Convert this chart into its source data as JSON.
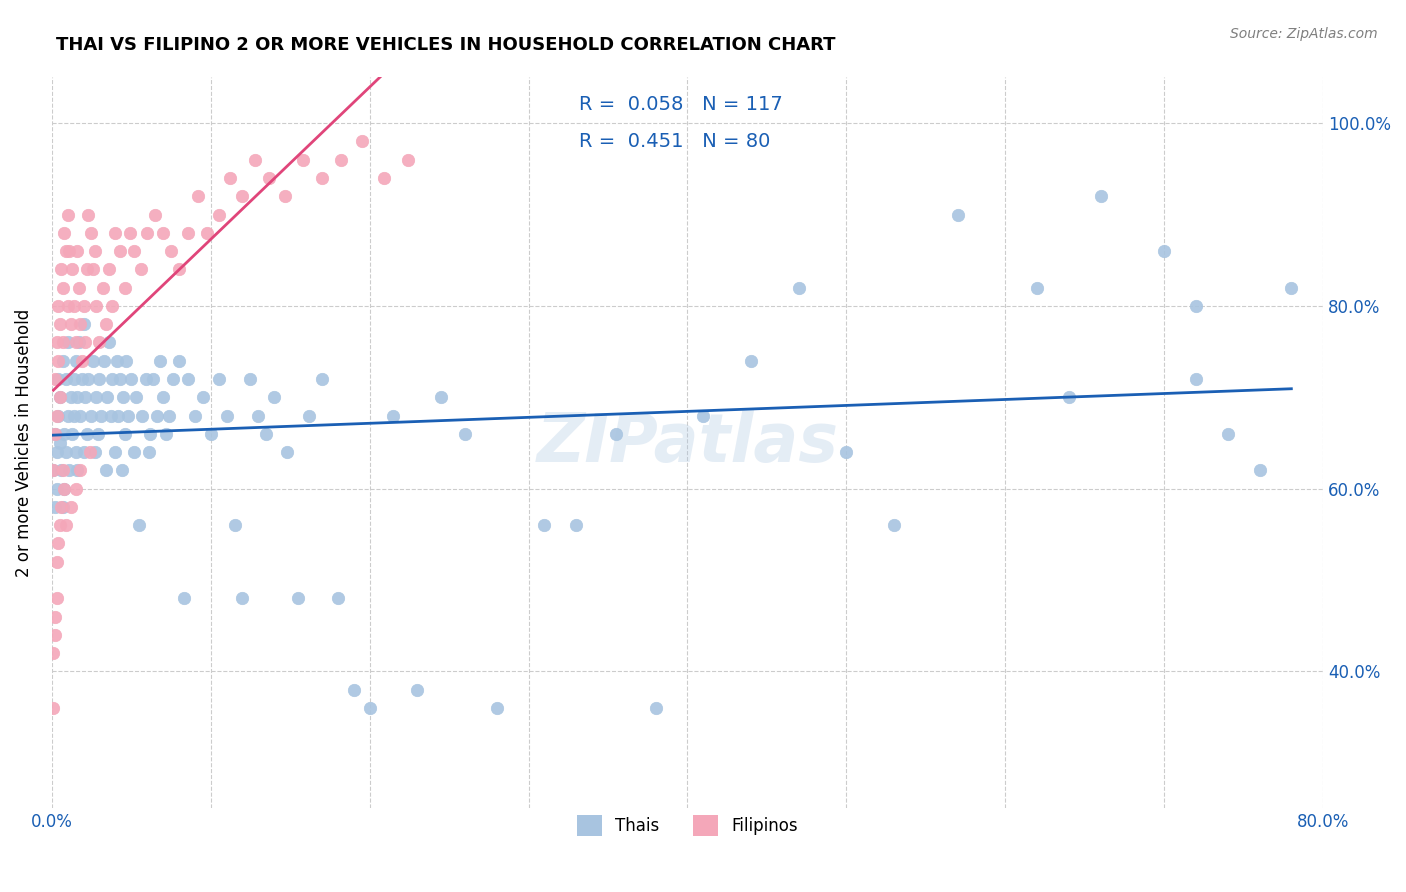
{
  "title": "THAI VS FILIPINO 2 OR MORE VEHICLES IN HOUSEHOLD CORRELATION CHART",
  "source": "Source: ZipAtlas.com",
  "xlabel": "",
  "ylabel": "2 or more Vehicles in Household",
  "watermark": "ZIPatlas",
  "xlim": [
    0.0,
    0.8
  ],
  "ylim": [
    0.25,
    1.05
  ],
  "xticks": [
    0.0,
    0.1,
    0.2,
    0.3,
    0.4,
    0.5,
    0.6,
    0.7,
    0.8
  ],
  "xticklabels": [
    "0.0%",
    "",
    "",
    "",
    "",
    "",
    "",
    "",
    "80.0%"
  ],
  "yticks": [
    0.4,
    0.6,
    0.8,
    1.0
  ],
  "yticklabels": [
    "40.0%",
    "60.0%",
    "80.0%",
    "100.0%"
  ],
  "thai_color": "#a8c4e0",
  "filipino_color": "#f4a7b9",
  "thai_line_color": "#1a5fb4",
  "filipino_line_color": "#e0457a",
  "legend_R_color": "#1a5fb4",
  "legend_N_color": "#1a5fb4",
  "thai_R": 0.058,
  "thai_N": 117,
  "filipino_R": 0.451,
  "filipino_N": 80,
  "thai_x": [
    0.001,
    0.002,
    0.002,
    0.003,
    0.003,
    0.004,
    0.004,
    0.005,
    0.005,
    0.006,
    0.007,
    0.007,
    0.008,
    0.008,
    0.009,
    0.009,
    0.01,
    0.01,
    0.011,
    0.012,
    0.013,
    0.014,
    0.014,
    0.015,
    0.015,
    0.016,
    0.016,
    0.017,
    0.018,
    0.019,
    0.02,
    0.02,
    0.021,
    0.022,
    0.023,
    0.025,
    0.026,
    0.027,
    0.028,
    0.029,
    0.03,
    0.031,
    0.033,
    0.034,
    0.035,
    0.036,
    0.037,
    0.038,
    0.04,
    0.041,
    0.042,
    0.043,
    0.044,
    0.045,
    0.046,
    0.047,
    0.048,
    0.05,
    0.052,
    0.053,
    0.055,
    0.057,
    0.059,
    0.061,
    0.062,
    0.064,
    0.066,
    0.068,
    0.07,
    0.072,
    0.074,
    0.076,
    0.08,
    0.083,
    0.086,
    0.09,
    0.095,
    0.1,
    0.105,
    0.11,
    0.115,
    0.12,
    0.125,
    0.13,
    0.135,
    0.14,
    0.148,
    0.155,
    0.162,
    0.17,
    0.18,
    0.19,
    0.2,
    0.215,
    0.23,
    0.245,
    0.26,
    0.28,
    0.31,
    0.33,
    0.355,
    0.38,
    0.41,
    0.44,
    0.47,
    0.5,
    0.53,
    0.57,
    0.62,
    0.66,
    0.7,
    0.72,
    0.74,
    0.76,
    0.78,
    0.72,
    0.64
  ],
  "thai_y": [
    0.62,
    0.58,
    0.66,
    0.6,
    0.64,
    0.68,
    0.72,
    0.65,
    0.7,
    0.62,
    0.58,
    0.74,
    0.6,
    0.66,
    0.64,
    0.72,
    0.68,
    0.76,
    0.62,
    0.7,
    0.66,
    0.72,
    0.68,
    0.64,
    0.74,
    0.7,
    0.62,
    0.76,
    0.68,
    0.72,
    0.64,
    0.78,
    0.7,
    0.66,
    0.72,
    0.68,
    0.74,
    0.64,
    0.7,
    0.66,
    0.72,
    0.68,
    0.74,
    0.62,
    0.7,
    0.76,
    0.68,
    0.72,
    0.64,
    0.74,
    0.68,
    0.72,
    0.62,
    0.7,
    0.66,
    0.74,
    0.68,
    0.72,
    0.64,
    0.7,
    0.56,
    0.68,
    0.72,
    0.64,
    0.66,
    0.72,
    0.68,
    0.74,
    0.7,
    0.66,
    0.68,
    0.72,
    0.74,
    0.48,
    0.72,
    0.68,
    0.7,
    0.66,
    0.72,
    0.68,
    0.56,
    0.48,
    0.72,
    0.68,
    0.66,
    0.7,
    0.64,
    0.48,
    0.68,
    0.72,
    0.48,
    0.38,
    0.36,
    0.68,
    0.38,
    0.7,
    0.66,
    0.36,
    0.56,
    0.56,
    0.66,
    0.36,
    0.68,
    0.74,
    0.82,
    0.64,
    0.56,
    0.9,
    0.82,
    0.92,
    0.86,
    0.72,
    0.66,
    0.62,
    0.82,
    0.8,
    0.7
  ],
  "filipino_x": [
    0.001,
    0.002,
    0.002,
    0.003,
    0.003,
    0.004,
    0.004,
    0.005,
    0.005,
    0.006,
    0.007,
    0.007,
    0.008,
    0.009,
    0.01,
    0.01,
    0.011,
    0.012,
    0.013,
    0.014,
    0.015,
    0.016,
    0.017,
    0.018,
    0.019,
    0.02,
    0.021,
    0.022,
    0.023,
    0.025,
    0.026,
    0.027,
    0.028,
    0.03,
    0.032,
    0.034,
    0.036,
    0.038,
    0.04,
    0.043,
    0.046,
    0.049,
    0.052,
    0.056,
    0.06,
    0.065,
    0.07,
    0.075,
    0.08,
    0.086,
    0.092,
    0.098,
    0.105,
    0.112,
    0.12,
    0.128,
    0.137,
    0.147,
    0.158,
    0.17,
    0.182,
    0.195,
    0.209,
    0.224,
    0.024,
    0.018,
    0.015,
    0.012,
    0.009,
    0.008,
    0.007,
    0.006,
    0.005,
    0.004,
    0.003,
    0.003,
    0.002,
    0.002,
    0.001,
    0.001
  ],
  "filipino_y": [
    0.62,
    0.66,
    0.72,
    0.76,
    0.68,
    0.74,
    0.8,
    0.7,
    0.78,
    0.84,
    0.76,
    0.82,
    0.88,
    0.86,
    0.9,
    0.8,
    0.86,
    0.78,
    0.84,
    0.8,
    0.76,
    0.86,
    0.82,
    0.78,
    0.74,
    0.8,
    0.76,
    0.84,
    0.9,
    0.88,
    0.84,
    0.86,
    0.8,
    0.76,
    0.82,
    0.78,
    0.84,
    0.8,
    0.88,
    0.86,
    0.82,
    0.88,
    0.86,
    0.84,
    0.88,
    0.9,
    0.88,
    0.86,
    0.84,
    0.88,
    0.92,
    0.88,
    0.9,
    0.94,
    0.92,
    0.96,
    0.94,
    0.92,
    0.96,
    0.94,
    0.96,
    0.98,
    0.94,
    0.96,
    0.64,
    0.62,
    0.6,
    0.58,
    0.56,
    0.6,
    0.62,
    0.58,
    0.56,
    0.54,
    0.52,
    0.48,
    0.46,
    0.44,
    0.42,
    0.36
  ]
}
